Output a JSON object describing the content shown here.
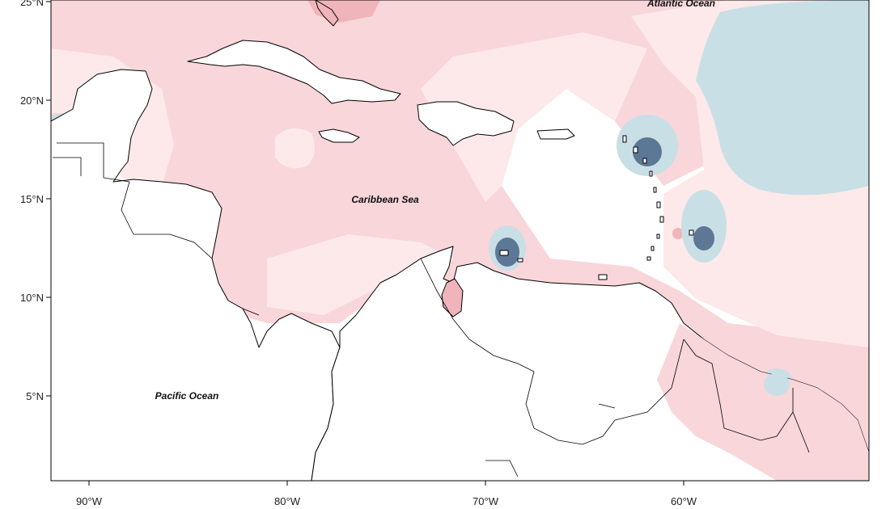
{
  "map": {
    "x_ticks": [
      "90°W",
      "80°W",
      "70°W",
      "60°W"
    ],
    "y_ticks": [
      "25°N",
      "20°N",
      "15°N",
      "10°N",
      "5°N"
    ],
    "labels": {
      "atlantic": "Atlantic Ocean",
      "caribbean": "Caribbean Sea",
      "pacific": "Pacific Ocean"
    },
    "colors": {
      "anomaly_pos_weak": "#fde9ea",
      "anomaly_pos": "#f9d6da",
      "anomaly_pos_strong": "#f0b4bb",
      "anomaly_neg_weak": "#c9dfe6",
      "anomaly_neg": "#a9c7d6",
      "anomaly_neg_strong": "#5d7796"
    }
  }
}
